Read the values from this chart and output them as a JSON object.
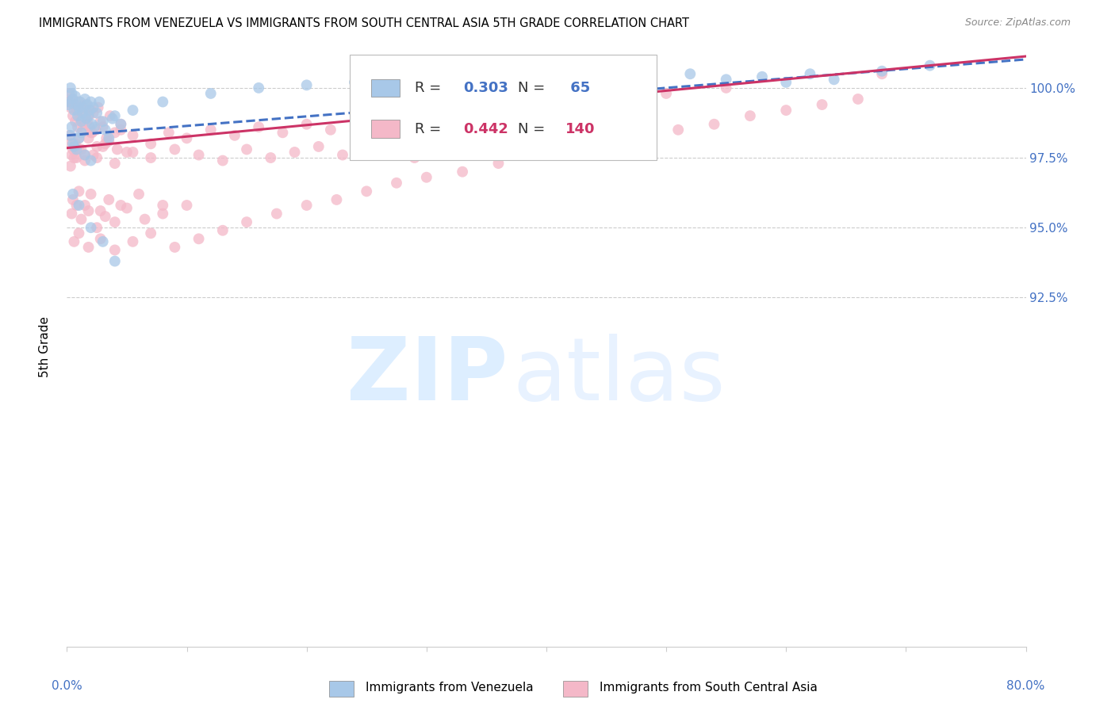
{
  "title": "IMMIGRANTS FROM VENEZUELA VS IMMIGRANTS FROM SOUTH CENTRAL ASIA 5TH GRADE CORRELATION CHART",
  "source": "Source: ZipAtlas.com",
  "ylabel": "5th Grade",
  "yaxis_values": [
    92.5,
    95.0,
    97.5,
    100.0
  ],
  "legend_blue": {
    "label": "Immigrants from Venezuela",
    "R": 0.303,
    "N": 65
  },
  "legend_pink": {
    "label": "Immigrants from South Central Asia",
    "R": 0.442,
    "N": 140
  },
  "blue_color": "#a8c8e8",
  "pink_color": "#f4b8c8",
  "trendline_blue_color": "#4472c4",
  "trendline_pink_color": "#cc3366",
  "background_color": "#ffffff",
  "xlim": [
    0.0,
    80.0
  ],
  "ylim": [
    80.0,
    101.5
  ],
  "blue_scatter_x": [
    0.2,
    0.3,
    0.4,
    0.5,
    0.6,
    0.7,
    0.8,
    0.9,
    1.0,
    1.1,
    1.2,
    1.3,
    1.4,
    1.5,
    1.6,
    1.7,
    1.8,
    1.9,
    2.0,
    2.1,
    2.2,
    2.3,
    2.5,
    2.7,
    3.0,
    3.2,
    3.5,
    3.8,
    4.0,
    4.5,
    0.1,
    0.3,
    0.5,
    0.8,
    1.0,
    1.5,
    2.0,
    0.4,
    0.6,
    1.2,
    5.5,
    8.0,
    12.0,
    16.0,
    20.0,
    24.0,
    28.0,
    32.0,
    36.0,
    40.0,
    44.0,
    48.0,
    52.0,
    55.0,
    58.0,
    60.0,
    62.0,
    64.0,
    68.0,
    72.0,
    0.5,
    1.0,
    2.0,
    3.0,
    4.0
  ],
  "blue_scatter_y": [
    99.5,
    100.0,
    99.8,
    99.6,
    99.2,
    99.7,
    99.4,
    99.0,
    99.3,
    99.5,
    98.8,
    99.1,
    99.3,
    99.6,
    98.9,
    99.4,
    99.0,
    99.2,
    99.5,
    98.7,
    99.3,
    98.6,
    99.1,
    99.5,
    98.8,
    98.5,
    98.2,
    98.9,
    99.0,
    98.7,
    99.4,
    98.3,
    98.0,
    97.8,
    98.2,
    97.6,
    97.4,
    98.6,
    97.9,
    98.4,
    99.2,
    99.5,
    99.8,
    100.0,
    100.1,
    100.2,
    100.3,
    100.1,
    99.9,
    100.2,
    100.4,
    100.3,
    100.5,
    100.3,
    100.4,
    100.2,
    100.5,
    100.3,
    100.6,
    100.8,
    96.2,
    95.8,
    95.0,
    94.5,
    93.8
  ],
  "pink_scatter_x": [
    0.1,
    0.2,
    0.3,
    0.4,
    0.5,
    0.6,
    0.7,
    0.8,
    0.9,
    1.0,
    1.1,
    1.2,
    1.3,
    1.4,
    1.5,
    1.6,
    1.7,
    1.8,
    1.9,
    2.0,
    2.1,
    2.2,
    2.4,
    2.6,
    2.8,
    3.0,
    3.3,
    3.6,
    4.0,
    4.5,
    0.3,
    0.5,
    0.8,
    1.0,
    1.5,
    2.0,
    2.5,
    3.5,
    4.5,
    5.0,
    0.2,
    0.4,
    0.7,
    1.2,
    1.8,
    2.5,
    3.2,
    4.2,
    5.5,
    7.0,
    8.5,
    10.0,
    12.0,
    14.0,
    16.0,
    18.0,
    20.0,
    22.0,
    25.0,
    28.0,
    30.0,
    32.0,
    35.0,
    38.0,
    40.0,
    42.0,
    45.0,
    48.0,
    50.0,
    55.0,
    0.3,
    0.6,
    1.0,
    1.5,
    2.2,
    3.0,
    4.0,
    5.5,
    7.0,
    9.0,
    11.0,
    13.0,
    15.0,
    17.0,
    19.0,
    21.0,
    23.0,
    26.0,
    29.0,
    31.0,
    0.5,
    1.0,
    1.5,
    2.0,
    2.8,
    3.5,
    4.5,
    6.0,
    8.0,
    10.0,
    0.4,
    0.8,
    1.2,
    1.8,
    2.5,
    3.2,
    4.0,
    5.0,
    6.5,
    8.0,
    0.6,
    1.0,
    1.8,
    2.8,
    4.0,
    5.5,
    7.0,
    9.0,
    11.0,
    13.0,
    15.0,
    17.5,
    20.0,
    22.5,
    25.0,
    27.5,
    30.0,
    33.0,
    36.0,
    39.0,
    42.0,
    45.0,
    48.0,
    51.0,
    54.0,
    57.0,
    60.0,
    63.0,
    66.0,
    68.0
  ],
  "pink_scatter_y": [
    99.5,
    99.8,
    99.3,
    99.6,
    99.0,
    99.4,
    98.8,
    99.2,
    98.6,
    99.5,
    98.9,
    99.3,
    98.5,
    99.1,
    98.7,
    99.4,
    98.8,
    99.0,
    98.6,
    99.2,
    98.4,
    99.1,
    98.5,
    99.3,
    98.8,
    98.6,
    98.2,
    99.0,
    98.4,
    98.7,
    98.0,
    97.8,
    97.5,
    98.2,
    97.6,
    98.4,
    97.9,
    98.1,
    98.5,
    97.7,
    98.3,
    97.6,
    98.0,
    97.8,
    98.2,
    97.5,
    98.0,
    97.8,
    98.3,
    98.0,
    98.4,
    98.2,
    98.5,
    98.3,
    98.6,
    98.4,
    98.7,
    98.5,
    98.8,
    98.9,
    99.0,
    99.1,
    99.2,
    99.3,
    99.4,
    99.5,
    99.6,
    99.7,
    99.8,
    100.0,
    97.2,
    97.5,
    97.8,
    97.4,
    97.6,
    97.9,
    97.3,
    97.7,
    97.5,
    97.8,
    97.6,
    97.4,
    97.8,
    97.5,
    97.7,
    97.9,
    97.6,
    97.8,
    97.5,
    97.8,
    96.0,
    96.3,
    95.8,
    96.2,
    95.6,
    96.0,
    95.8,
    96.2,
    95.5,
    95.8,
    95.5,
    95.8,
    95.3,
    95.6,
    95.0,
    95.4,
    95.2,
    95.7,
    95.3,
    95.8,
    94.5,
    94.8,
    94.3,
    94.6,
    94.2,
    94.5,
    94.8,
    94.3,
    94.6,
    94.9,
    95.2,
    95.5,
    95.8,
    96.0,
    96.3,
    96.6,
    96.8,
    97.0,
    97.3,
    97.6,
    97.8,
    98.0,
    98.3,
    98.5,
    98.7,
    99.0,
    99.2,
    99.4,
    99.6,
    100.5
  ]
}
